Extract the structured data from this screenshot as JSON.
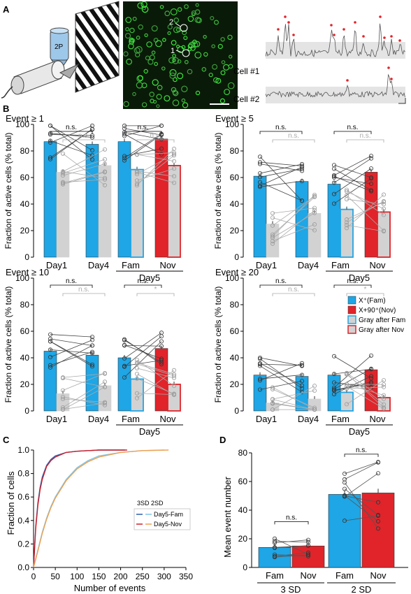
{
  "panels": {
    "A": "A",
    "B": "B",
    "C": "C",
    "D": "D"
  },
  "panel_a": {
    "microscope_label": "2P",
    "cell_markers": [
      "1",
      "2"
    ],
    "trace_labels": [
      "Cell #1",
      "Cell #2"
    ]
  },
  "panel_b": {
    "ylabel": "Fraction of active cells (% total)",
    "yticks": [
      "0",
      "20",
      "40",
      "60",
      "80",
      "100"
    ],
    "day_labels": {
      "day1": "Day1",
      "day4": "Day4",
      "fam": "Fam",
      "nov": "Nov",
      "day5": "Day5"
    },
    "ns": "n.s.",
    "star": "*",
    "legend": [
      "X⁺(Fam)",
      "X+90⁺(Nov)",
      "Gray after Fam",
      "Gray after Nov"
    ],
    "colors": {
      "blue": "#1ea6e6",
      "red": "#e0242a",
      "gray": "#d2d2d2"
    }
  },
  "panel_c": {
    "ylabel": "Fraction of cells",
    "xlabel": "Number of events",
    "xticks": [
      "0",
      "50",
      "100",
      "150",
      "200",
      "250",
      "300",
      "350"
    ],
    "yticks": [
      "0.0",
      "0.2",
      "0.4",
      "0.6",
      "0.8",
      "1.0"
    ],
    "legend_header": "3SD 2SD",
    "legend": [
      "Day5-Fam",
      "Day5-Nov"
    ]
  },
  "panel_d": {
    "ylabel": "Mean event number",
    "yticks": [
      "0",
      "20",
      "40",
      "60",
      "80"
    ],
    "xlabels": [
      "Fam",
      "Nov",
      "Fam",
      "Nov"
    ],
    "group_labels": [
      "3 SD",
      "2 SD"
    ],
    "ns": "n.s."
  },
  "chart_data": [
    {
      "type": "bar",
      "title": "Event ≥ 1",
      "ylabel": "Fraction of active cells (% total)",
      "ylim": [
        0,
        100
      ],
      "categories": [
        "Day1",
        "Day4",
        "Fam",
        "Nov"
      ],
      "series": [
        {
          "name": "X⁺(Fam)",
          "values": [
            87,
            85,
            87,
            null
          ]
        },
        {
          "name": "X+90⁺(Nov)",
          "values": [
            null,
            null,
            null,
            89
          ]
        },
        {
          "name": "Gray after Fam",
          "values": [
            64,
            69,
            66,
            null
          ]
        },
        {
          "name": "Gray after Nov",
          "values": [
            null,
            null,
            null,
            69
          ]
        }
      ]
    },
    {
      "type": "bar",
      "title": "Event ≥ 5",
      "ylabel": "Fraction of active cells (% total)",
      "ylim": [
        0,
        100
      ],
      "categories": [
        "Day1",
        "Day4",
        "Fam",
        "Nov"
      ],
      "series": [
        {
          "name": "X⁺(Fam)",
          "values": [
            61,
            57,
            55,
            null
          ]
        },
        {
          "name": "X+90⁺(Nov)",
          "values": [
            null,
            null,
            null,
            64
          ]
        },
        {
          "name": "Gray after Fam",
          "values": [
            25,
            33,
            36,
            null
          ]
        },
        {
          "name": "Gray after Nov",
          "values": [
            null,
            null,
            null,
            34
          ]
        }
      ]
    },
    {
      "type": "bar",
      "title": "Event ≥ 10",
      "ylabel": "Fraction of active cells (% total)",
      "ylim": [
        0,
        100
      ],
      "categories": [
        "Day1",
        "Day4",
        "Fam",
        "Nov"
      ],
      "series": [
        {
          "name": "X⁺(Fam)",
          "values": [
            45,
            42,
            40,
            null
          ]
        },
        {
          "name": "X+90⁺(Nov)",
          "values": [
            null,
            null,
            null,
            47
          ]
        },
        {
          "name": "Gray after Fam",
          "values": [
            13,
            19,
            24,
            null
          ]
        },
        {
          "name": "Gray after Nov",
          "values": [
            null,
            null,
            null,
            20
          ]
        }
      ]
    },
    {
      "type": "bar",
      "title": "Event ≥ 20",
      "ylabel": "Fraction of active cells (% total)",
      "ylim": [
        0,
        100
      ],
      "categories": [
        "Day1",
        "Day4",
        "Fam",
        "Nov"
      ],
      "series": [
        {
          "name": "X⁺(Fam)",
          "values": [
            27,
            26,
            27,
            null
          ]
        },
        {
          "name": "X+90⁺(Nov)",
          "values": [
            null,
            null,
            null,
            31
          ]
        },
        {
          "name": "Gray after Fam",
          "values": [
            6,
            9,
            14,
            null
          ]
        },
        {
          "name": "Gray after Nov",
          "values": [
            null,
            null,
            null,
            10
          ]
        }
      ]
    },
    {
      "type": "line",
      "xlabel": "Number of events",
      "ylabel": "Fraction of cells",
      "xlim": [
        0,
        350
      ],
      "ylim": [
        0,
        1.0
      ],
      "legend_position": "right",
      "series": [
        {
          "name": "Day5-Fam",
          "x": [
            0,
            5,
            10,
            15,
            20,
            30,
            40,
            50,
            75,
            100,
            150,
            210
          ],
          "y": [
            0.0,
            0.35,
            0.55,
            0.68,
            0.77,
            0.87,
            0.92,
            0.95,
            0.98,
            0.99,
            1.0,
            1.0
          ]
        },
        {
          "name": "Day5-Nov",
          "x": [
            0,
            5,
            10,
            15,
            20,
            30,
            40,
            50,
            75,
            100,
            150,
            215
          ],
          "y": [
            0.0,
            0.33,
            0.53,
            0.66,
            0.75,
            0.86,
            0.91,
            0.94,
            0.98,
            0.99,
            1.0,
            1.0
          ]
        },
        {
          "name": "Day5-Fam",
          "x": [
            0,
            10,
            20,
            30,
            40,
            50,
            75,
            100,
            125,
            150,
            200,
            250,
            300
          ],
          "y": [
            0.0,
            0.15,
            0.3,
            0.42,
            0.52,
            0.6,
            0.75,
            0.85,
            0.91,
            0.95,
            0.98,
            0.995,
            1.0
          ]
        },
        {
          "name": "Day5-Nov",
          "x": [
            0,
            10,
            20,
            30,
            40,
            50,
            75,
            100,
            125,
            150,
            200,
            250,
            310
          ],
          "y": [
            0.0,
            0.14,
            0.29,
            0.41,
            0.51,
            0.59,
            0.74,
            0.84,
            0.9,
            0.94,
            0.98,
            0.995,
            1.0
          ]
        }
      ]
    },
    {
      "type": "bar",
      "ylabel": "Mean event number",
      "ylim": [
        0,
        80
      ],
      "categories": [
        "Fam",
        "Nov",
        "Fam",
        "Nov"
      ],
      "groups": [
        "3 SD",
        "3 SD",
        "2 SD",
        "2 SD"
      ],
      "values": [
        14,
        15,
        51,
        52
      ]
    }
  ]
}
